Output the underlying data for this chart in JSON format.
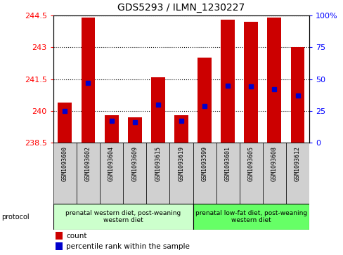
{
  "title": "GDS5293 / ILMN_1230227",
  "samples": [
    "GSM1093600",
    "GSM1093602",
    "GSM1093604",
    "GSM1093609",
    "GSM1093615",
    "GSM1093619",
    "GSM1093599",
    "GSM1093601",
    "GSM1093605",
    "GSM1093608",
    "GSM1093612"
  ],
  "counts": [
    240.4,
    244.4,
    239.8,
    239.7,
    241.6,
    239.8,
    242.5,
    244.3,
    244.2,
    244.4,
    243.0
  ],
  "percentiles": [
    25,
    47,
    17,
    16,
    30,
    17,
    29,
    45,
    44,
    42,
    37
  ],
  "ymin": 238.5,
  "ymax": 244.5,
  "yticks": [
    238.5,
    240.0,
    241.5,
    243.0,
    244.5
  ],
  "ytick_labels": [
    "238.5",
    "240",
    "241.5",
    "243",
    "244.5"
  ],
  "right_yticks": [
    0,
    25,
    50,
    75,
    100
  ],
  "right_ytick_labels": [
    "0",
    "25",
    "50",
    "75",
    "100%"
  ],
  "bar_color": "#cc0000",
  "percentile_color": "#0000cc",
  "group1_label": "prenatal western diet, post-weaning\nwestern diet",
  "group2_label": "prenatal low-fat diet, post-weaning\nwestern diet",
  "group1_color": "#ccffcc",
  "group2_color": "#66ff66",
  "group1_indices": [
    0,
    1,
    2,
    3,
    4,
    5
  ],
  "group2_indices": [
    6,
    7,
    8,
    9,
    10
  ],
  "legend_count": "count",
  "legend_percentile": "percentile rank within the sample",
  "bar_width": 0.6,
  "sample_cell_color": "#d0d0d0",
  "protocol_label": "protocol"
}
